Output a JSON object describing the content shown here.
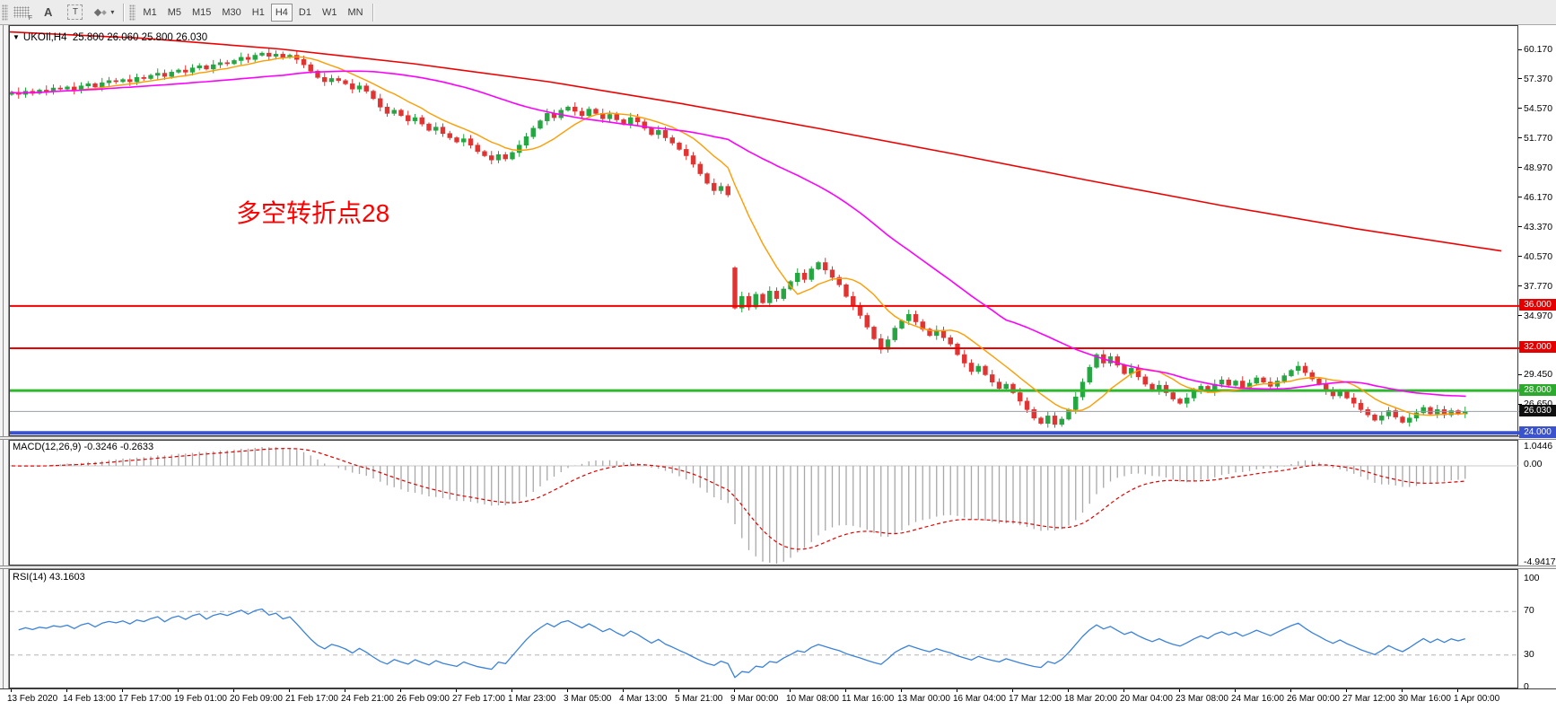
{
  "toolbar": {
    "grid_tool_label": "F",
    "text_tool_a": "A",
    "text_tool_t": "T",
    "dropdown_arrow": "▾",
    "timeframes": [
      "M1",
      "M5",
      "M15",
      "M30",
      "H1",
      "H4",
      "D1",
      "W1",
      "MN"
    ],
    "active_timeframe": "H4"
  },
  "chart": {
    "collapse_arrow": "▼",
    "title": "UKOIl,H4",
    "ohlc": "25.800 26.060 25.800 26.030",
    "annotation": "多空转折点28",
    "annotation_color": "#ff0000"
  },
  "chart_data": {
    "type": "candlestick",
    "symbol": "UKOIl",
    "timeframe": "H4",
    "first_open": 56.0,
    "closes": [
      56.2,
      56.0,
      56.3,
      56.1,
      56.4,
      56.3,
      56.6,
      56.5,
      56.7,
      56.4,
      56.8,
      57.0,
      56.7,
      57.1,
      57.3,
      57.2,
      57.4,
      57.2,
      57.6,
      57.5,
      57.8,
      58.0,
      57.7,
      58.1,
      58.3,
      58.1,
      58.5,
      58.7,
      58.4,
      58.8,
      59.0,
      58.9,
      59.2,
      59.5,
      59.3,
      59.7,
      59.9,
      59.6,
      59.8,
      59.5,
      59.7,
      59.3,
      58.8,
      58.2,
      57.6,
      57.2,
      57.5,
      57.3,
      57.0,
      56.5,
      56.8,
      56.3,
      55.6,
      54.8,
      54.2,
      54.5,
      54.0,
      53.5,
      53.8,
      53.2,
      52.6,
      52.9,
      52.3,
      51.9,
      51.5,
      51.8,
      51.2,
      50.6,
      50.2,
      49.8,
      50.3,
      49.9,
      50.5,
      51.2,
      52.0,
      52.8,
      53.5,
      54.2,
      53.8,
      54.5,
      54.8,
      54.4,
      54.0,
      54.6,
      54.2,
      53.7,
      54.1,
      53.6,
      53.2,
      53.8,
      53.4,
      52.8,
      52.2,
      52.6,
      51.9,
      51.4,
      50.8,
      50.2,
      49.4,
      48.5,
      47.6,
      46.9,
      47.3,
      46.5,
      35.8,
      36.9,
      35.9,
      37.1,
      36.3,
      37.4,
      36.7,
      37.6,
      38.3,
      39.1,
      38.5,
      39.5,
      40.1,
      39.4,
      38.7,
      38.0,
      36.9,
      36.0,
      35.1,
      34.0,
      32.9,
      31.9,
      32.8,
      33.9,
      34.6,
      35.2,
      34.5,
      33.8,
      33.2,
      33.7,
      33.0,
      32.4,
      31.4,
      30.6,
      29.8,
      30.3,
      29.5,
      28.8,
      28.2,
      28.6,
      27.8,
      27.0,
      26.2,
      25.4,
      24.9,
      25.6,
      24.8,
      25.3,
      26.2,
      27.4,
      28.8,
      30.2,
      31.4,
      30.6,
      31.2,
      30.4,
      29.6,
      30.1,
      29.3,
      28.6,
      28.0,
      28.5,
      27.8,
      27.2,
      26.8,
      27.3,
      27.9,
      28.4,
      27.9,
      28.6,
      29.0,
      28.5,
      28.9,
      28.3,
      28.7,
      29.2,
      28.8,
      28.4,
      28.9,
      29.4,
      29.9,
      30.3,
      29.7,
      29.1,
      28.6,
      28.0,
      27.5,
      27.9,
      27.3,
      26.8,
      26.2,
      25.7,
      25.2,
      25.6,
      26.1,
      25.5,
      25.0,
      25.4,
      25.9,
      26.4,
      25.8,
      26.2,
      25.7,
      26.1,
      25.8,
      26.03
    ],
    "gap_opens": {
      "104": 39.6
    },
    "bull_color": "#1fa33c",
    "bear_color": "#e03432",
    "wick_base": 0.15,
    "wick_var": 0.1,
    "overlays": {
      "sma_fast": {
        "period": 10,
        "color": "#ff9c00"
      },
      "sma_mid": {
        "period": 40,
        "color": "#ff00ff"
      },
      "sma_slow": {
        "color": "#ee0000",
        "points": [
          [
            0,
            61.9
          ],
          [
            150,
            61.3
          ],
          [
            300,
            60.3
          ],
          [
            450,
            58.9
          ],
          [
            600,
            57.2
          ],
          [
            750,
            55.1
          ],
          [
            900,
            52.8
          ],
          [
            1050,
            50.4
          ],
          [
            1200,
            47.9
          ],
          [
            1350,
            45.5
          ],
          [
            1500,
            43.3
          ],
          [
            1662,
            41.2
          ]
        ]
      }
    },
    "price_ticks": [
      {
        "label": "60.170",
        "value": 60.17
      },
      {
        "label": "57.370",
        "value": 57.37
      },
      {
        "label": "54.570",
        "value": 54.57
      },
      {
        "label": "51.770",
        "value": 51.77
      },
      {
        "label": "48.970",
        "value": 48.97
      },
      {
        "label": "46.170",
        "value": 46.17
      },
      {
        "label": "43.370",
        "value": 43.37
      },
      {
        "label": "40.570",
        "value": 40.57
      },
      {
        "label": "37.770",
        "value": 37.77
      },
      {
        "label": "34.970",
        "value": 34.97
      },
      {
        "label": "29.450",
        "value": 29.45
      },
      {
        "label": "26.650",
        "value": 26.65
      }
    ],
    "hlines": [
      {
        "label": "36.000",
        "value": 36.0,
        "line_color": "#f00000",
        "badge_color": "#e50000",
        "width": 2
      },
      {
        "label": "32.000",
        "value": 32.0,
        "line_color": "#f00000",
        "badge_color": "#e50000",
        "width": 2
      },
      {
        "label": "28.000",
        "value": 28.0,
        "line_color": "#2db82d",
        "badge_color": "#2daa2d",
        "width": 3
      },
      {
        "label": "26.030",
        "value": 26.03,
        "line_color": "#9aa0a6",
        "badge_color": "#101010",
        "width": 1
      },
      {
        "label": "24.000",
        "value": 24.0,
        "line_color": "#3a52cc",
        "badge_color": "#3a52cc",
        "width": 4
      }
    ],
    "macd": {
      "label": "MACD(12,26,9) -0.3246 -0.2633",
      "fast": 12,
      "slow": 26,
      "signal": 9,
      "axis_max": "1.0446",
      "axis_zero": "0.00",
      "axis_min": "-4.9417",
      "hist_color": "#a8a8a8",
      "signal_color": "#e00000"
    },
    "rsi": {
      "label": "RSI(14) 43.1603",
      "period": 14,
      "axis_labels": [
        "100",
        "70",
        "30",
        "0"
      ],
      "levels": [
        70,
        30
      ],
      "line_color": "#3b82d8"
    },
    "x_labels": [
      "13 Feb 2020",
      "14 Feb 13:00",
      "17 Feb 17:00",
      "19 Feb 01:00",
      "20 Feb 09:00",
      "21 Feb 17:00",
      "24 Feb 21:00",
      "26 Feb 09:00",
      "27 Feb 17:00",
      "1 Mar 23:00",
      "3 Mar 05:00",
      "4 Mar 13:00",
      "5 Mar 21:00",
      "9 Mar 00:00",
      "10 Mar 08:00",
      "11 Mar 16:00",
      "13 Mar 00:00",
      "16 Mar 04:00",
      "17 Mar 12:00",
      "18 Mar 20:00",
      "20 Mar 04:00",
      "23 Mar 08:00",
      "24 Mar 16:00",
      "26 Mar 00:00",
      "27 Mar 12:00",
      "30 Mar 16:00",
      "1 Apr 00:00"
    ]
  }
}
